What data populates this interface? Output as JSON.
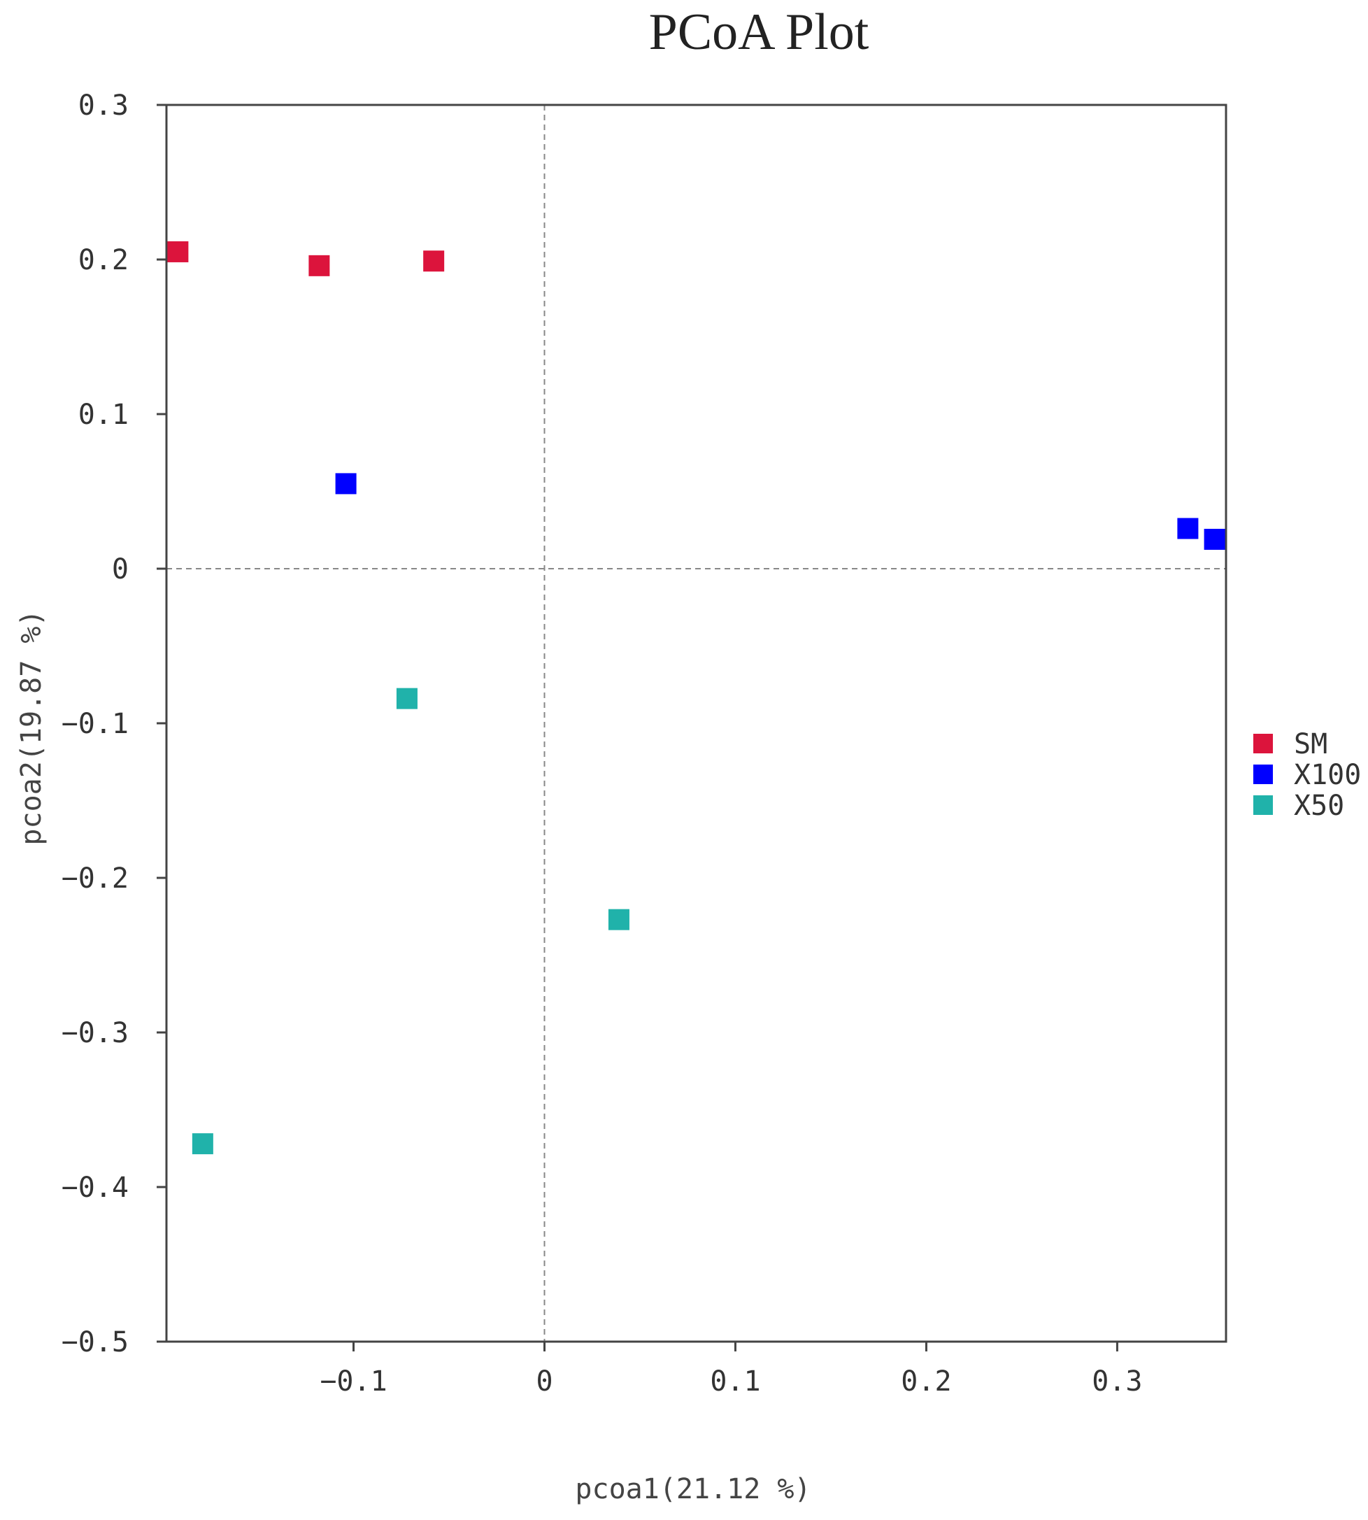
{
  "chart_data": {
    "type": "scatter",
    "title": "PCoA Plot",
    "xlabel": "pcoa1(21.12 %)",
    "ylabel": "pcoa2(19.87 %)",
    "xlim": [
      -0.198,
      0.357
    ],
    "ylim": [
      -0.5,
      0.3
    ],
    "x_ticks": [
      {
        "value": -0.1,
        "label": "−0.1"
      },
      {
        "value": 0,
        "label": "0"
      },
      {
        "value": 0.1,
        "label": "0.1"
      },
      {
        "value": 0.2,
        "label": "0.2"
      },
      {
        "value": 0.3,
        "label": "0.3"
      }
    ],
    "y_ticks": [
      {
        "value": 0.3,
        "label": "0.3"
      },
      {
        "value": 0.2,
        "label": "0.2"
      },
      {
        "value": 0.1,
        "label": "0.1"
      },
      {
        "value": 0,
        "label": "0"
      },
      {
        "value": -0.1,
        "label": "−0.1"
      },
      {
        "value": -0.2,
        "label": "−0.2"
      },
      {
        "value": -0.3,
        "label": "−0.3"
      },
      {
        "value": -0.4,
        "label": "−0.4"
      },
      {
        "value": -0.5,
        "label": "−0.5"
      }
    ],
    "reference_lines": {
      "x": 0,
      "y": 0,
      "style": "dashed"
    },
    "grid": false,
    "legend_position": "right",
    "marker": "square",
    "series": [
      {
        "name": "SM",
        "color": "#dc143c",
        "points": [
          [
            -0.192,
            0.205
          ],
          [
            -0.118,
            0.196
          ],
          [
            -0.058,
            0.199
          ]
        ]
      },
      {
        "name": "X100",
        "color": "#0000ff",
        "points": [
          [
            -0.104,
            0.055
          ],
          [
            0.337,
            0.026
          ],
          [
            0.351,
            0.019
          ]
        ]
      },
      {
        "name": "X50",
        "color": "#20b2aa",
        "points": [
          [
            -0.072,
            -0.084
          ],
          [
            0.039,
            -0.227
          ],
          [
            -0.179,
            -0.372
          ]
        ]
      }
    ]
  }
}
